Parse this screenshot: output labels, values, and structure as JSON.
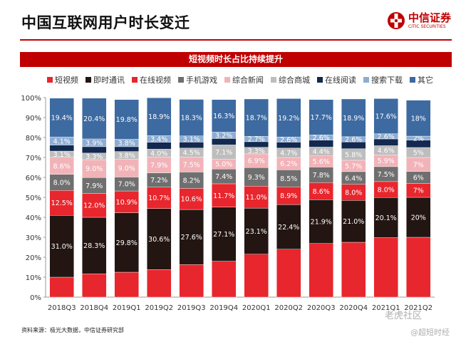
{
  "page": {
    "title": "中国互联网用户时长变迁",
    "banner": "短视频时长占比持续提升",
    "source": "资料来源：极光大数据，中信证券研究部"
  },
  "logo": {
    "name": "中信证券",
    "english": "CITIC SECURITIES"
  },
  "watermark": {
    "line1": "老虎社区",
    "line2": "@超短时经"
  },
  "colors": {
    "brand": "#c00000",
    "series": [
      "#e8262d",
      "#221512",
      "#f5a0a5",
      "#6f6f6f",
      "#f2bcc0",
      "#bdbdbd",
      "#13294f",
      "#8dadd3",
      "#3d6aa0"
    ]
  },
  "chart_data": {
    "type": "bar",
    "stacked": true,
    "title": "短视频时长占比持续提升",
    "xlabel": "",
    "ylabel": "",
    "ylim": [
      0,
      100
    ],
    "yticks": [
      "0%",
      "10%",
      "20%",
      "30%",
      "40%",
      "50%",
      "60%",
      "70%",
      "80%",
      "90%",
      "100%"
    ],
    "grid": false,
    "legend_position": "top",
    "categories": [
      "2018Q3",
      "2018Q4",
      "2019Q1",
      "2019Q2",
      "2019Q3",
      "2019Q4",
      "2020Q1",
      "2020Q2",
      "2020Q3",
      "2020Q4",
      "2021Q1",
      "2021Q2"
    ],
    "series": [
      {
        "name": "短视频",
        "color": "#e8262d",
        "values": [
          10.0,
          11.7,
          12.5,
          13.8,
          16.3,
          18.0,
          21.5,
          24.0,
          26.9,
          27.5,
          29.8,
          30.0
        ],
        "label_color": "#f08a8e",
        "labels": [
          "",
          "",
          "",
          "",
          "",
          "",
          "",
          "",
          "",
          "",
          "",
          ""
        ]
      },
      {
        "name": "即时通讯",
        "color": "#221512",
        "values": [
          31.0,
          28.3,
          29.8,
          30.6,
          27.6,
          27.1,
          23.1,
          22.4,
          21.9,
          21.0,
          20.1,
          20.0
        ],
        "label_color": "#ffffff",
        "labels": [
          "31.0%",
          "28.3%",
          "29.8%",
          "30.6%",
          "27.6%",
          "27.1%",
          "23.1%",
          "22.4%",
          "21.9%",
          "21.0%",
          "20.1%",
          "20%"
        ]
      },
      {
        "name": "在线视频",
        "color": "#e8262d",
        "values": [
          12.5,
          12.0,
          10.9,
          10.7,
          10.6,
          11.7,
          11.0,
          8.9,
          8.6,
          8.0,
          8.0,
          7.0
        ],
        "label_color": "#ffffff",
        "labels": [
          "12.5%",
          "12.0%",
          "10.9%",
          "10.7%",
          "10.6%",
          "11.7%",
          "11.0%",
          "8.9%",
          "8.6%",
          "8.0%",
          "8.0%",
          "7%"
        ]
      },
      {
        "name": "手机游戏",
        "color": "#6f6f6f",
        "values": [
          8.0,
          7.9,
          7.0,
          7.2,
          8.2,
          7.4,
          9.3,
          8.5,
          7.8,
          6.4,
          7.5,
          6.0
        ],
        "label_color": "#ffffff",
        "labels": [
          "8.0%",
          "7.9%",
          "7.0%",
          "7.2%",
          "8.2%",
          "7.4%",
          "9.3%",
          "8.5%",
          "7.8%",
          "6.4%",
          "7.5%",
          "6%"
        ]
      },
      {
        "name": "综合新闻",
        "color": "#f2b3b8",
        "values": [
          8.6,
          9.0,
          9.0,
          7.9,
          7.5,
          5.0,
          6.9,
          6.2,
          5.6,
          5.7,
          5.9,
          7.0
        ],
        "label_color": "#ffffff",
        "labels": [
          "8.6%",
          "9.0%",
          "9.0%",
          "7.9%",
          "7.5%",
          "5.0%",
          "6.9%",
          "6.2%",
          "5.6%",
          "5.7%",
          "5.9%",
          "7%"
        ]
      },
      {
        "name": "综合商城",
        "color": "#bdbdbd",
        "values": [
          3.1,
          3.3,
          3.8,
          4.0,
          4.5,
          7.1,
          3.3,
          4.7,
          4.4,
          5.8,
          4.6,
          5.0
        ],
        "label_color": "#ffffff",
        "labels": [
          "3.1%",
          "3.3%",
          "3.8%",
          "4.0%",
          "4.5%",
          "7.1%",
          "3.3%",
          "4.7%",
          "4.4%",
          "5.8%",
          "4.6%",
          "5%"
        ]
      },
      {
        "name": "在线阅读",
        "color": "#13294f",
        "values": [
          3.0,
          3.2,
          2.4,
          3.4,
          3.0,
          3.2,
          2.8,
          3.0,
          3.5,
          3.4,
          3.4,
          3.7
        ],
        "label_color": "#ffffff",
        "labels": [
          "",
          "",
          "",
          "",
          "",
          "",
          "",
          "",
          "",
          "",
          "",
          ""
        ]
      },
      {
        "name": "搜索下载",
        "color": "#8dadd3",
        "values": [
          4.1,
          3.9,
          3.8,
          3.4,
          3.1,
          3.2,
          2.7,
          2.6,
          2.6,
          2.6,
          2.6,
          2.0
        ],
        "label_color": "#ffffff",
        "labels": [
          "4.1%",
          "3.9%",
          "3.8%",
          "3.4%",
          "3.1%",
          "3.2%",
          "2.7%",
          "2.6%",
          "2.6%",
          "2.6%",
          "2.6%",
          "2%"
        ]
      },
      {
        "name": "其它",
        "color": "#3d6aa0",
        "values": [
          19.4,
          20.4,
          19.8,
          18.9,
          18.3,
          16.3,
          18.7,
          19.2,
          17.7,
          18.9,
          17.6,
          18.0
        ],
        "label_color": "#ffffff",
        "labels": [
          "19.4%",
          "20.4%",
          "19.8%",
          "18.9%",
          "18.3%",
          "16.3%",
          "18.7%",
          "19.2%",
          "17.7%",
          "18.9%",
          "17.6%",
          "18%"
        ]
      }
    ]
  }
}
